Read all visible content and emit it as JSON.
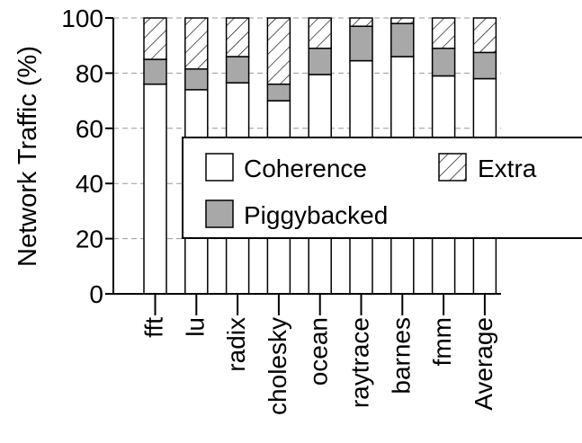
{
  "chart_data": {
    "type": "bar",
    "stacked": true,
    "categories": [
      "fft",
      "lu",
      "radix",
      "cholesky",
      "ocean",
      "raytrace",
      "barnes",
      "fmm",
      "Average"
    ],
    "series": [
      {
        "name": "Coherence",
        "values": [
          76,
          74,
          76.5,
          70,
          79.5,
          84.5,
          86,
          79,
          78
        ],
        "fill": "#ffffff",
        "pattern": "none"
      },
      {
        "name": "Piggybacked",
        "values": [
          9,
          7.5,
          9.5,
          6,
          9.5,
          12.5,
          12,
          10,
          9.5
        ],
        "fill": "#a8a8a8",
        "pattern": "none"
      },
      {
        "name": "Extra",
        "values": [
          15,
          18.5,
          14,
          24,
          11,
          3,
          2,
          11,
          12.5
        ],
        "fill": "#ffffff",
        "pattern": "diagonal-hatch"
      }
    ],
    "title": "",
    "xlabel": "",
    "ylabel": "Network Traffic (%)",
    "ylim": [
      0,
      100
    ],
    "yticks": [
      0,
      20,
      40,
      60,
      80,
      100
    ],
    "grid": "horizontal-dashed",
    "legend": {
      "placement": "center-right",
      "entries": [
        "Coherence",
        "Extra",
        "Piggybacked"
      ]
    }
  }
}
